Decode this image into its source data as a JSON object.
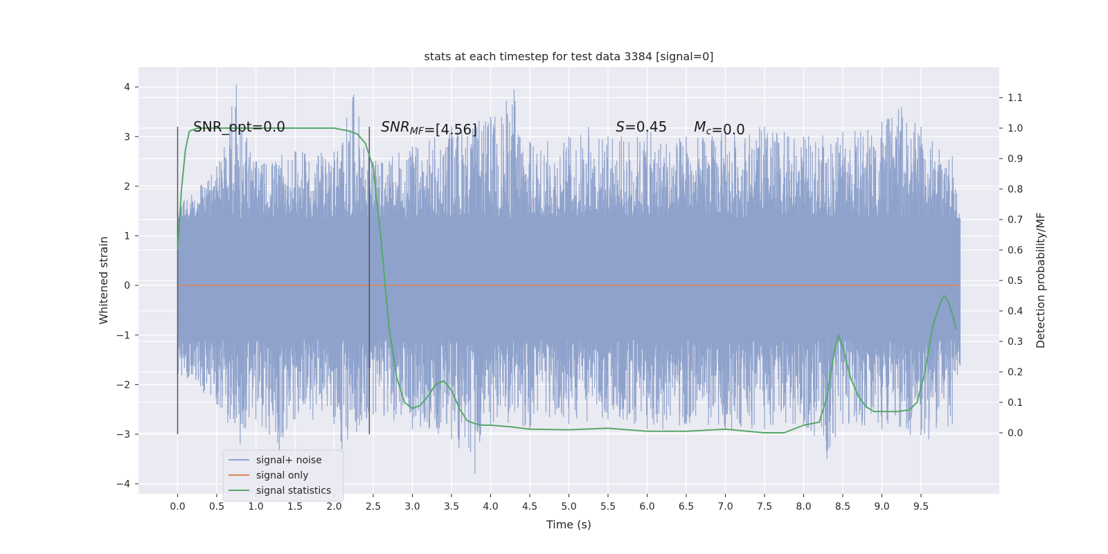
{
  "chart_data": {
    "type": "line",
    "title": "stats at each timestep for test data 3384 [signal=0]",
    "xlabel": "Time (s)",
    "ylabel": "Whitened strain",
    "ylabel_right": "Detection probability/MF",
    "xlim": [
      -0.5,
      10.5
    ],
    "ylim": [
      -4.2,
      4.4
    ],
    "ylim_right": [
      -0.2,
      1.2
    ],
    "x_ticks": [
      0.0,
      0.5,
      1.0,
      1.5,
      2.0,
      2.5,
      3.0,
      3.5,
      4.0,
      4.5,
      5.0,
      5.5,
      6.0,
      6.5,
      7.0,
      7.5,
      8.0,
      8.5,
      9.0,
      9.5
    ],
    "x_tick_labels": [
      "0.0",
      "0.5",
      "1.0",
      "1.5",
      "2.0",
      "2.5",
      "3.0",
      "3.5",
      "4.0",
      "4.5",
      "5.0",
      "5.5",
      "6.0",
      "6.5",
      "7.0",
      "7.5",
      "8.0",
      "8.5",
      "9.0",
      "9.5"
    ],
    "y_ticks": [
      4,
      3,
      2,
      1,
      0,
      -1,
      -2,
      -3,
      -4
    ],
    "y_tick_labels": [
      "4",
      "3",
      "2",
      "1",
      "0",
      "−1",
      "−2",
      "−3",
      "−4"
    ],
    "y_ticks_right": [
      1.1,
      1.0,
      0.9,
      0.8,
      0.7,
      0.6,
      0.5,
      0.4,
      0.3,
      0.2,
      0.1,
      0.0
    ],
    "y_tick_labels_right": [
      "1.1",
      "1.0",
      "0.9",
      "0.8",
      "0.7",
      "0.6",
      "0.5",
      "0.4",
      "0.3",
      "0.2",
      "0.1",
      "0.0"
    ],
    "grid": true,
    "legend_position": "lower-left",
    "colors": {
      "background": "#eaeaf2",
      "grid": "#ffffff",
      "signal_noise": "#8ea2cc",
      "signal_only": "#dd8452",
      "signal_statistics": "#55a868",
      "vline": "#555555"
    },
    "series": [
      {
        "name": "signal+ noise",
        "axis": "left",
        "t_range": [
          0.0,
          10.0
        ],
        "envelope_upper": [
          [
            0.0,
            1.6
          ],
          [
            0.5,
            2.4
          ],
          [
            0.75,
            4.05
          ],
          [
            1.0,
            2.5
          ],
          [
            1.5,
            2.7
          ],
          [
            2.0,
            2.7
          ],
          [
            2.25,
            3.85
          ],
          [
            2.5,
            2.5
          ],
          [
            3.0,
            2.8
          ],
          [
            3.5,
            3.2
          ],
          [
            4.0,
            3.4
          ],
          [
            4.3,
            3.95
          ],
          [
            4.5,
            2.9
          ],
          [
            5.0,
            3.0
          ],
          [
            5.25,
            3.2
          ],
          [
            5.5,
            3.0
          ],
          [
            6.0,
            3.1
          ],
          [
            6.5,
            3.0
          ],
          [
            7.0,
            3.1
          ],
          [
            7.5,
            3.2
          ],
          [
            8.0,
            3.0
          ],
          [
            8.5,
            3.1
          ],
          [
            9.0,
            3.3
          ],
          [
            9.25,
            3.6
          ],
          [
            9.5,
            3.2
          ],
          [
            9.9,
            2.6
          ],
          [
            10.0,
            1.3
          ]
        ],
        "envelope_lower": [
          [
            0.0,
            -1.8
          ],
          [
            0.5,
            -2.4
          ],
          [
            0.8,
            -3.2
          ],
          [
            1.0,
            -2.7
          ],
          [
            1.3,
            -3.4
          ],
          [
            1.5,
            -2.7
          ],
          [
            2.0,
            -2.8
          ],
          [
            2.1,
            -3.3
          ],
          [
            2.5,
            -2.6
          ],
          [
            3.0,
            -2.9
          ],
          [
            3.5,
            -3.1
          ],
          [
            3.8,
            -3.8
          ],
          [
            4.0,
            -2.8
          ],
          [
            4.5,
            -2.9
          ],
          [
            5.0,
            -2.8
          ],
          [
            5.5,
            -2.7
          ],
          [
            6.0,
            -2.9
          ],
          [
            6.2,
            -2.9
          ],
          [
            6.5,
            -2.8
          ],
          [
            7.0,
            -2.9
          ],
          [
            7.5,
            -2.9
          ],
          [
            8.0,
            -2.8
          ],
          [
            8.3,
            -3.5
          ],
          [
            8.5,
            -2.8
          ],
          [
            9.0,
            -2.9
          ],
          [
            9.6,
            -3.1
          ],
          [
            9.9,
            -2.8
          ],
          [
            10.0,
            -1.6
          ]
        ],
        "core_band": [
          -1.1,
          1.35
        ]
      },
      {
        "name": "signal only",
        "axis": "left",
        "x": [
          0.0,
          10.0
        ],
        "y": [
          0.0,
          0.0
        ]
      },
      {
        "name": "signal statistics",
        "axis": "right",
        "x": [
          0.0,
          0.05,
          0.1,
          0.15,
          0.25,
          0.5,
          1.0,
          1.5,
          2.0,
          2.2,
          2.3,
          2.4,
          2.5,
          2.6,
          2.7,
          2.8,
          2.9,
          3.0,
          3.1,
          3.2,
          3.3,
          3.4,
          3.5,
          3.6,
          3.7,
          3.8,
          3.9,
          4.0,
          4.25,
          4.5,
          5.0,
          5.5,
          6.0,
          6.5,
          7.0,
          7.5,
          7.75,
          8.0,
          8.2,
          8.3,
          8.4,
          8.45,
          8.5,
          8.6,
          8.7,
          8.8,
          8.9,
          9.0,
          9.2,
          9.35,
          9.45,
          9.55,
          9.65,
          9.75,
          9.8,
          9.85,
          9.9,
          9.95
        ],
        "y": [
          0.6,
          0.8,
          0.93,
          0.99,
          1.0,
          1.0,
          1.0,
          1.0,
          1.0,
          0.99,
          0.98,
          0.95,
          0.87,
          0.63,
          0.35,
          0.18,
          0.1,
          0.08,
          0.09,
          0.12,
          0.16,
          0.17,
          0.14,
          0.08,
          0.04,
          0.03,
          0.025,
          0.025,
          0.02,
          0.012,
          0.01,
          0.015,
          0.005,
          0.005,
          0.012,
          0.0,
          0.0,
          0.025,
          0.035,
          0.12,
          0.28,
          0.32,
          0.28,
          0.18,
          0.12,
          0.085,
          0.07,
          0.07,
          0.07,
          0.075,
          0.1,
          0.2,
          0.35,
          0.43,
          0.45,
          0.43,
          0.39,
          0.34
        ]
      }
    ],
    "vertical_markers": [
      {
        "x": 0.0,
        "y_range": [
          -3.0,
          3.2
        ]
      },
      {
        "x": 2.45,
        "y_range": [
          -3.0,
          3.2
        ]
      }
    ],
    "annotations": [
      {
        "id": "snr-opt",
        "x": 0.2,
        "y": 3.2,
        "parts": [
          {
            "text": "SNR_opt=0.0",
            "style": "normal"
          }
        ]
      },
      {
        "id": "snr-mf",
        "x": 2.6,
        "y": 3.2,
        "parts": [
          {
            "text": "SNR",
            "style": "italic"
          },
          {
            "text": "MF",
            "style": "sub"
          },
          {
            "text": "=[4.56]",
            "style": "normal"
          }
        ]
      },
      {
        "id": "s-val",
        "x": 5.6,
        "y": 3.2,
        "parts": [
          {
            "text": "S",
            "style": "italic"
          },
          {
            "text": "=0.45",
            "style": "normal"
          }
        ]
      },
      {
        "id": "mc-val",
        "x": 6.6,
        "y": 3.2,
        "parts": [
          {
            "text": "M",
            "style": "italic"
          },
          {
            "text": "c",
            "style": "sub"
          },
          {
            "text": "=0.0",
            "style": "normal"
          }
        ]
      }
    ],
    "legend": [
      {
        "label": "signal+ noise",
        "color_key": "signal_noise"
      },
      {
        "label": "signal only",
        "color_key": "signal_only"
      },
      {
        "label": "signal statistics",
        "color_key": "signal_statistics"
      }
    ]
  }
}
